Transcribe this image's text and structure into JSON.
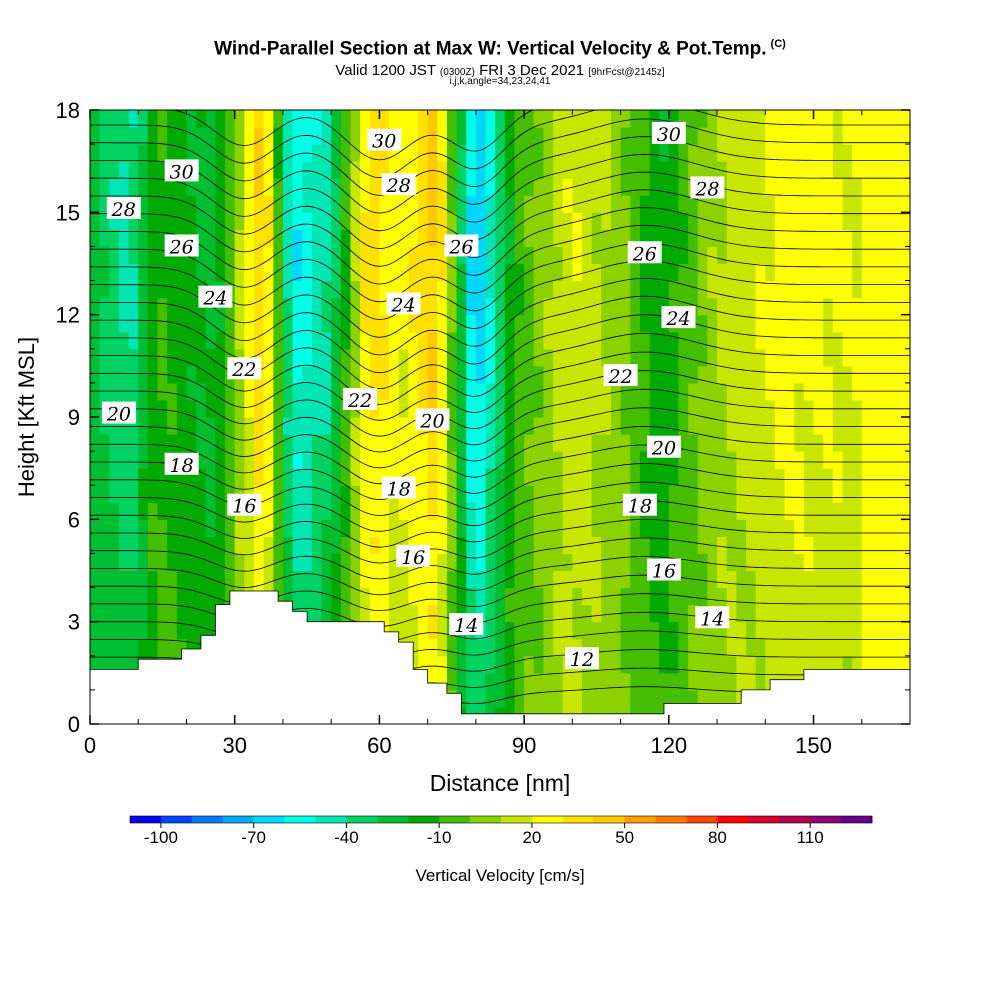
{
  "title": {
    "main": "Wind-Parallel Section at Max W: Vertical Velocity & Pot.Temp.",
    "copyright": "(C)",
    "valid_prefix": "Valid 1200 JST",
    "valid_z": "(0300Z)",
    "valid_date": "FRI 3 Dec 2021",
    "valid_fcst": "[9hrFcst@2145z]",
    "indices": "i,j,k,angle=34,23,24,41"
  },
  "chart_data": {
    "type": "heatmap",
    "xlabel": "Distance [nm]",
    "ylabel": "Height [Kft MSL]",
    "xlim": [
      0,
      170
    ],
    "ylim": [
      0,
      18
    ],
    "x_ticks": [
      "0",
      "30",
      "60",
      "90",
      "120",
      "150"
    ],
    "y_ticks": [
      "0",
      "3",
      "6",
      "9",
      "12",
      "15",
      "18"
    ],
    "colorbar": {
      "label": "Vertical Velocity [cm/s]",
      "tick_labels": [
        "-100",
        "-70",
        "-40",
        "-10",
        "20",
        "50",
        "80",
        "110"
      ],
      "colors": [
        "#0000f0",
        "#0046ff",
        "#0078ff",
        "#00aaff",
        "#00d7ff",
        "#00ffe6",
        "#00e6b4",
        "#00d264",
        "#00be32",
        "#00aa00",
        "#46be00",
        "#8cd200",
        "#c8e600",
        "#ffff00",
        "#ffe100",
        "#ffc800",
        "#ffa000",
        "#ff7800",
        "#ff4600",
        "#ff0000",
        "#dc0032",
        "#b40050",
        "#8c0078",
        "#64008c"
      ]
    },
    "theta_contour_labels": [
      {
        "text": "30",
        "x": 19,
        "y": 16.2
      },
      {
        "text": "30",
        "x": 61,
        "y": 17.1
      },
      {
        "text": "30",
        "x": 120,
        "y": 17.3
      },
      {
        "text": "28",
        "x": 7,
        "y": 15.1
      },
      {
        "text": "28",
        "x": 64,
        "y": 15.8
      },
      {
        "text": "28",
        "x": 128,
        "y": 15.7
      },
      {
        "text": "26",
        "x": 19,
        "y": 14.0
      },
      {
        "text": "26",
        "x": 77,
        "y": 14.0
      },
      {
        "text": "26",
        "x": 115,
        "y": 13.8
      },
      {
        "text": "24",
        "x": 26,
        "y": 12.5
      },
      {
        "text": "24",
        "x": 65,
        "y": 12.3
      },
      {
        "text": "24",
        "x": 122,
        "y": 11.9
      },
      {
        "text": "22",
        "x": 32,
        "y": 10.4
      },
      {
        "text": "22",
        "x": 56,
        "y": 9.5
      },
      {
        "text": "22",
        "x": 110,
        "y": 10.2
      },
      {
        "text": "20",
        "x": 6,
        "y": 9.1
      },
      {
        "text": "20",
        "x": 71,
        "y": 8.9
      },
      {
        "text": "20",
        "x": 119,
        "y": 8.1
      },
      {
        "text": "18",
        "x": 19,
        "y": 7.6
      },
      {
        "text": "18",
        "x": 64,
        "y": 6.9
      },
      {
        "text": "18",
        "x": 114,
        "y": 6.4
      },
      {
        "text": "16",
        "x": 32,
        "y": 6.4
      },
      {
        "text": "16",
        "x": 67,
        "y": 4.9
      },
      {
        "text": "16",
        "x": 119,
        "y": 4.5
      },
      {
        "text": "14",
        "x": 78,
        "y": 2.9
      },
      {
        "text": "14",
        "x": 129,
        "y": 3.1
      },
      {
        "text": "12",
        "x": 102,
        "y": 1.9
      }
    ],
    "terrain": [
      [
        0,
        1.6
      ],
      [
        10,
        1.6
      ],
      [
        10,
        1.9
      ],
      [
        19,
        1.9
      ],
      [
        19,
        2.2
      ],
      [
        23,
        2.2
      ],
      [
        23,
        2.6
      ],
      [
        26,
        2.6
      ],
      [
        26,
        3.5
      ],
      [
        29,
        3.5
      ],
      [
        29,
        3.9
      ],
      [
        39,
        3.9
      ],
      [
        39,
        3.6
      ],
      [
        42,
        3.6
      ],
      [
        42,
        3.3
      ],
      [
        45,
        3.3
      ],
      [
        45,
        3.0
      ],
      [
        61,
        3.0
      ],
      [
        61,
        2.7
      ],
      [
        64,
        2.7
      ],
      [
        64,
        2.4
      ],
      [
        67,
        2.4
      ],
      [
        67,
        1.6
      ],
      [
        70,
        1.6
      ],
      [
        70,
        1.2
      ],
      [
        74,
        1.2
      ],
      [
        74,
        0.9
      ],
      [
        77,
        0.9
      ],
      [
        77,
        0.3
      ],
      [
        119,
        0.3
      ],
      [
        119,
        0.6
      ],
      [
        135,
        0.6
      ],
      [
        135,
        1.0
      ],
      [
        141,
        1.0
      ],
      [
        141,
        1.3
      ],
      [
        148,
        1.3
      ],
      [
        148,
        1.6
      ],
      [
        170,
        1.6
      ]
    ],
    "vertical_velocity_bands": [
      {
        "x": 2,
        "w": -30
      },
      {
        "x": 8,
        "w": -45
      },
      {
        "x": 14,
        "w": -10
      },
      {
        "x": 26,
        "w": -25
      },
      {
        "x": 36,
        "w": 45
      },
      {
        "x": 42,
        "w": -60
      },
      {
        "x": 50,
        "w": -40
      },
      {
        "x": 58,
        "w": 40
      },
      {
        "x": 64,
        "w": 20
      },
      {
        "x": 72,
        "w": 45
      },
      {
        "x": 80,
        "w": -75
      },
      {
        "x": 88,
        "w": -10
      },
      {
        "x": 100,
        "w": 20
      },
      {
        "x": 110,
        "w": 5
      },
      {
        "x": 118,
        "w": -20
      },
      {
        "x": 130,
        "w": 10
      },
      {
        "x": 145,
        "w": 25
      },
      {
        "x": 160,
        "w": 20
      }
    ]
  }
}
